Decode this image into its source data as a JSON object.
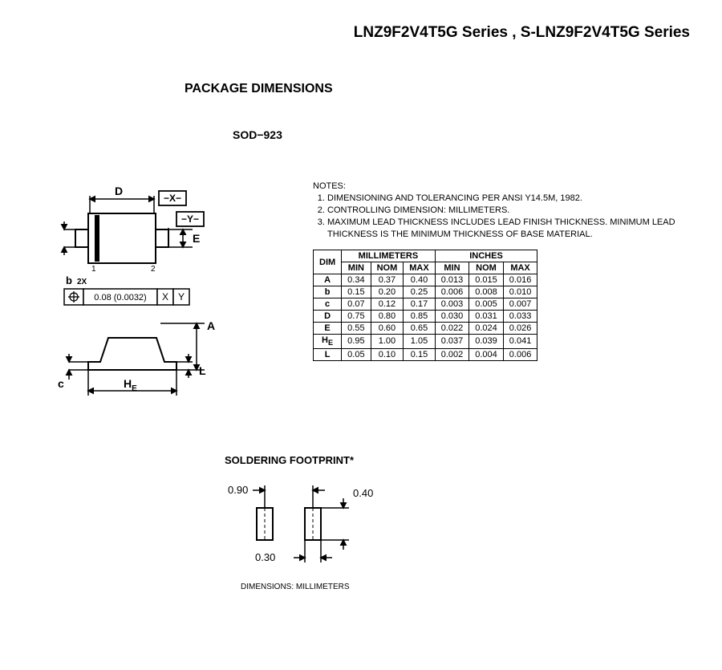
{
  "header": {
    "title": "LNZ9F2V4T5G Series , S-LNZ9F2V4T5G Series"
  },
  "section": {
    "heading": "PACKAGE DIMENSIONS",
    "package_type": "SOD−923"
  },
  "diagram_top": {
    "label_D": "D",
    "label_X": "−X−",
    "label_Y": "−Y−",
    "label_E": "E",
    "pin1": "1",
    "pin2": "2",
    "b2x": "b",
    "twox": "2X",
    "gd_tol": "0.08 (0.0032)",
    "gd_x": "X",
    "gd_y": "Y"
  },
  "diagram_side": {
    "label_A": "A",
    "label_L": "L",
    "label_c": "c",
    "label_HE": "H",
    "label_HE_sub": "E"
  },
  "notes": {
    "title": "NOTES:",
    "items": [
      "DIMENSIONING AND TOLERANCING PER ANSI Y14.5M, 1982.",
      "CONTROLLING DIMENSION: MILLIMETERS.",
      "MAXIMUM LEAD THICKNESS INCLUDES LEAD FINISH THICKNESS. MINIMUM LEAD THICKNESS IS THE MINIMUM THICKNESS OF BASE MATERIAL."
    ]
  },
  "dim_table": {
    "col_dim": "DIM",
    "group_mm": "MILLIMETERS",
    "group_in": "INCHES",
    "col_min": "MIN",
    "col_nom": "NOM",
    "col_max": "MAX",
    "rows": [
      {
        "dim": "A",
        "mm_min": "0.34",
        "mm_nom": "0.37",
        "mm_max": "0.40",
        "in_min": "0.013",
        "in_nom": "0.015",
        "in_max": "0.016"
      },
      {
        "dim": "b",
        "mm_min": "0.15",
        "mm_nom": "0.20",
        "mm_max": "0.25",
        "in_min": "0.006",
        "in_nom": "0.008",
        "in_max": "0.010"
      },
      {
        "dim": "c",
        "mm_min": "0.07",
        "mm_nom": "0.12",
        "mm_max": "0.17",
        "in_min": "0.003",
        "in_nom": "0.005",
        "in_max": "0.007"
      },
      {
        "dim": "D",
        "mm_min": "0.75",
        "mm_nom": "0.80",
        "mm_max": "0.85",
        "in_min": "0.030",
        "in_nom": "0.031",
        "in_max": "0.033"
      },
      {
        "dim": "E",
        "mm_min": "0.55",
        "mm_nom": "0.60",
        "mm_max": "0.65",
        "in_min": "0.022",
        "in_nom": "0.024",
        "in_max": "0.026"
      },
      {
        "dim": "HE",
        "sub": "E",
        "mm_min": "0.95",
        "mm_nom": "1.00",
        "mm_max": "1.05",
        "in_min": "0.037",
        "in_nom": "0.039",
        "in_max": "0.041"
      },
      {
        "dim": "L",
        "mm_min": "0.05",
        "mm_nom": "0.10",
        "mm_max": "0.15",
        "in_min": "0.002",
        "in_nom": "0.004",
        "in_max": "0.006"
      }
    ]
  },
  "footprint": {
    "heading": "SOLDERING FOOTPRINT*",
    "dim_090": "0.90",
    "dim_040": "0.40",
    "dim_030": "0.30",
    "caption": "DIMENSIONS: MILLIMETERS"
  },
  "style": {
    "line_color": "#000000",
    "fill_white": "#ffffff",
    "text_font_size_label": 13,
    "text_font_size_small": 10
  }
}
